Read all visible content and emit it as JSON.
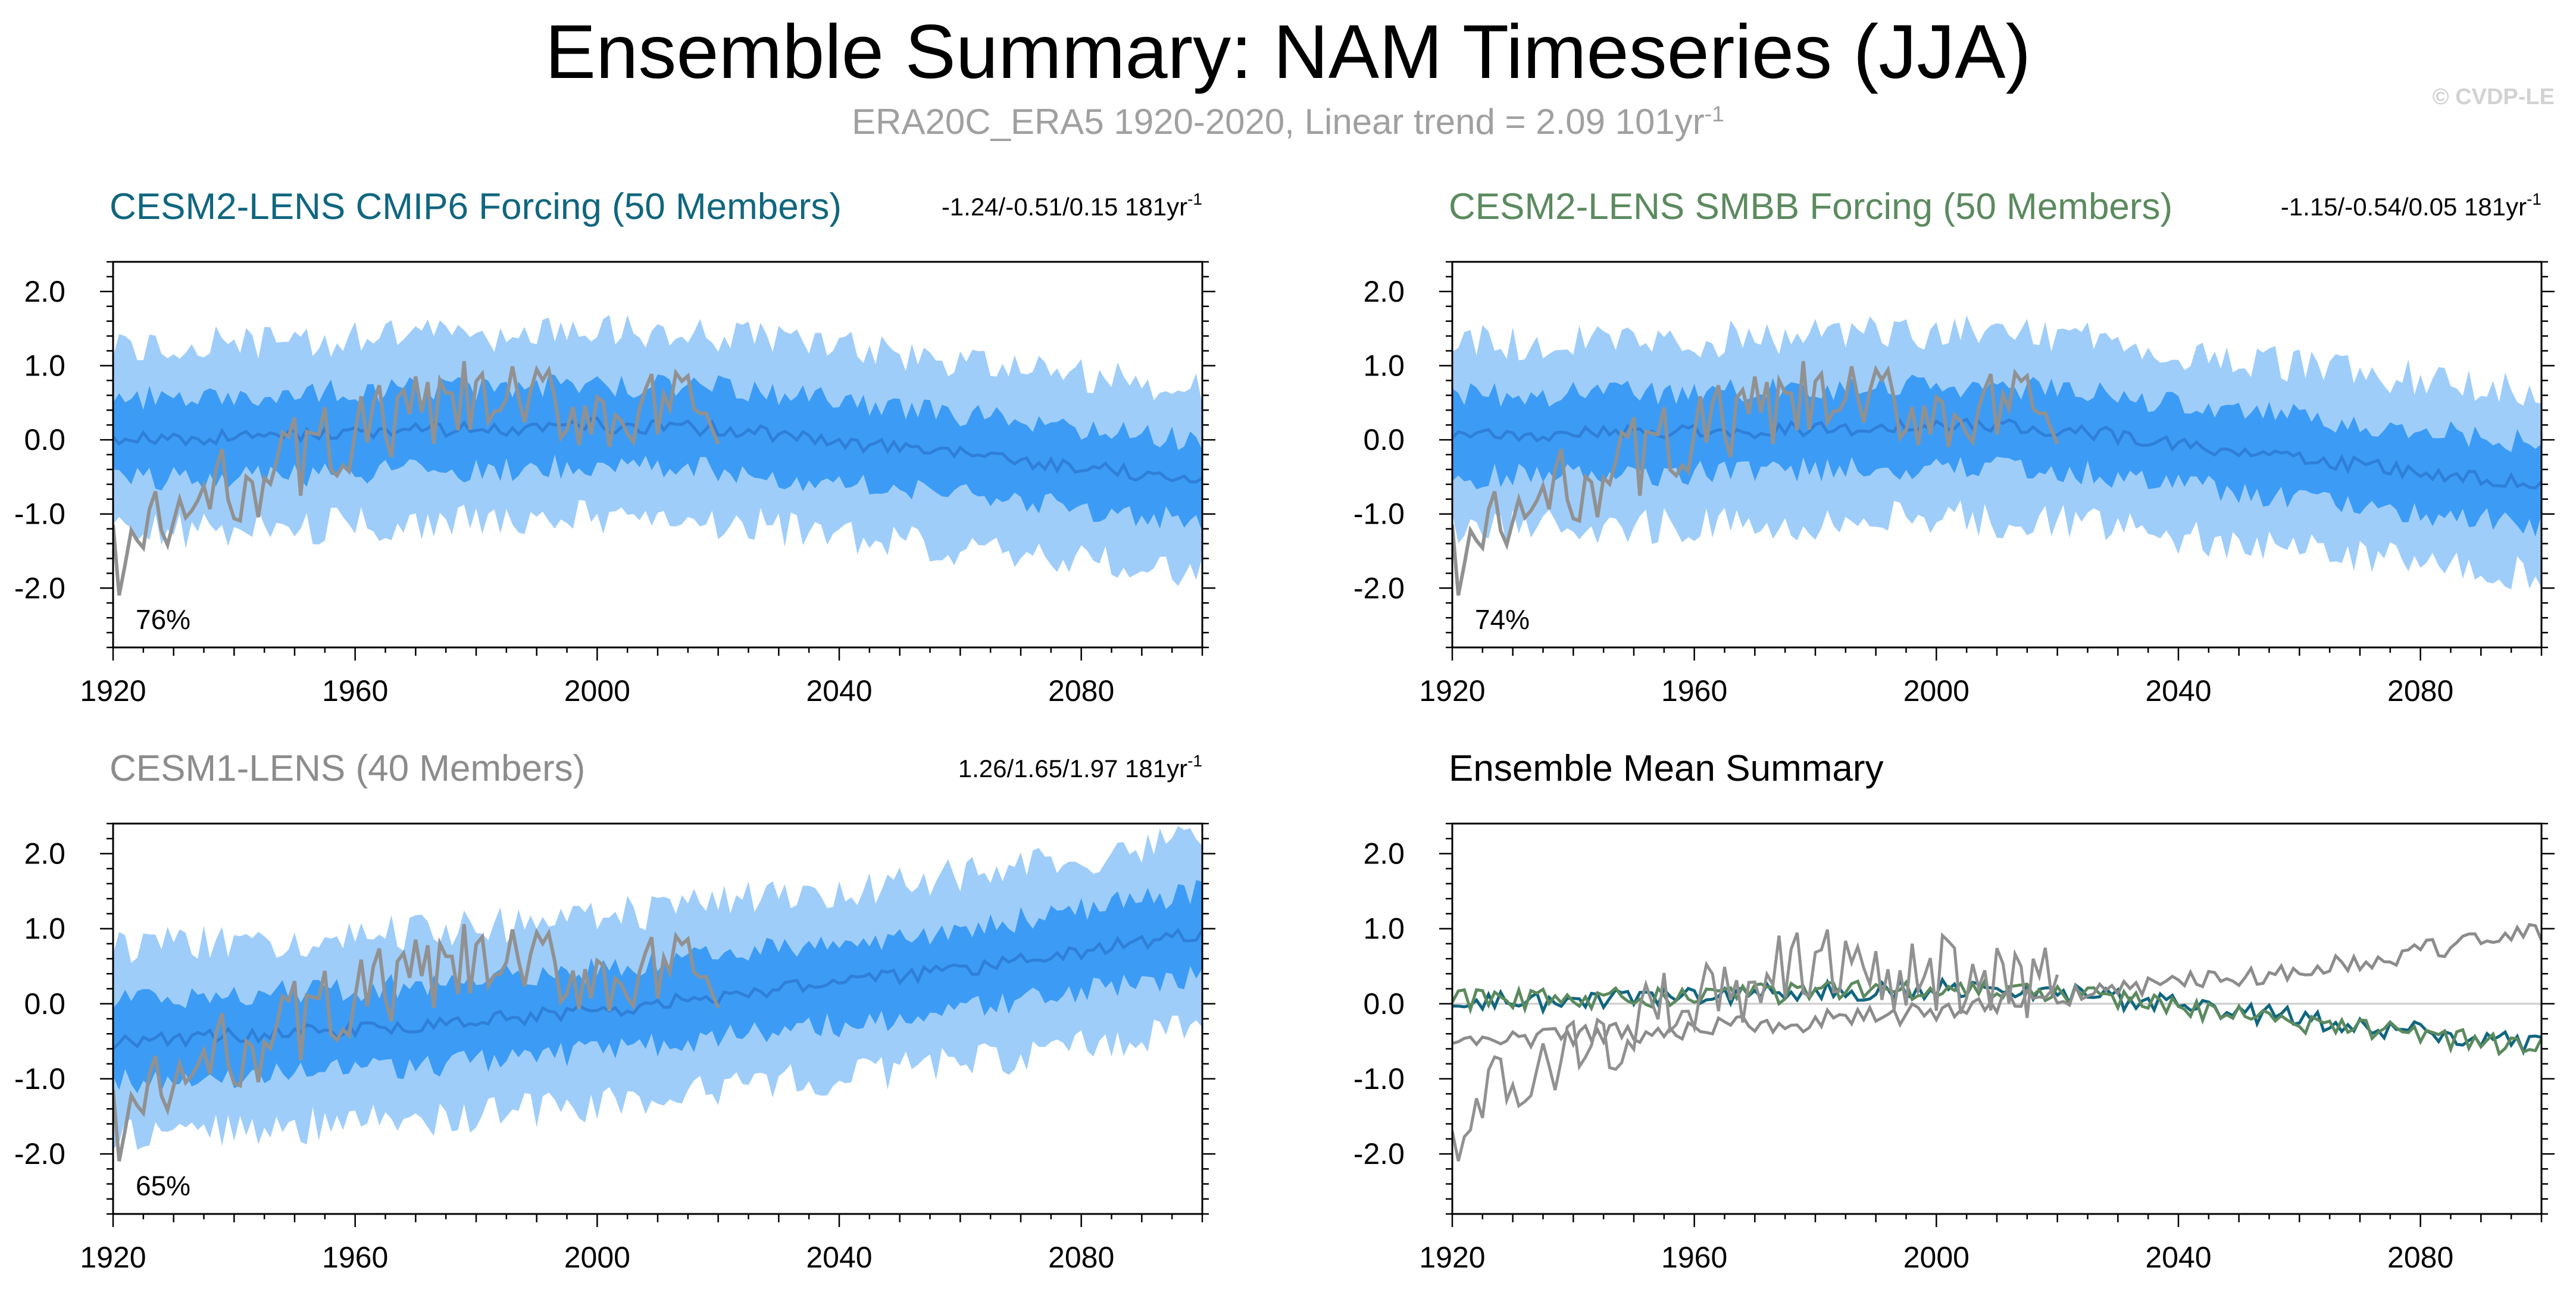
{
  "figure": {
    "title": "Ensemble Summary: NAM Timeseries (JJA)",
    "subtitle": "ERA20C_ERA5 1920-2020, Linear trend = 2.09 101yr",
    "subtitle_sup": "-1",
    "watermark": "© CVDP-LE"
  },
  "colors": {
    "outer_band": "#9fcdfa",
    "inner_band": "#3c9cf5",
    "ens_mean": "#2f7fd8",
    "observations": "#919191",
    "cmip6_title": "#10667f",
    "smbb_title": "#5b8a5e",
    "cesm1_title": "#8c8c8c",
    "axis": "#000000",
    "zero_line": "#cccccc"
  },
  "chart_data": [
    {
      "type": "area",
      "title": "CESM2-LENS CMIP6 Forcing (50 Members)",
      "title_color": "cmip6_title",
      "trend_stats": "-1.24/-0.51/0.15 181yr",
      "trend_sup": "-1",
      "percent_label": "76%",
      "x_range": [
        1920,
        2100
      ],
      "ylim": [
        -2.8,
        2.4
      ],
      "x_ticks": [
        1920,
        1960,
        2000,
        2040,
        2080
      ],
      "y_ticks": [
        -2.0,
        -1.0,
        0.0,
        1.0,
        2.0
      ],
      "y_tick_labels": [
        "-2.0",
        "-1.0",
        "0.0",
        "1.0",
        "2.0"
      ],
      "series": [
        {
          "name": "",
          "role": "ens_mean_trend",
          "x": [
            1920,
            1960,
            2000,
            2020,
            2060,
            2100
          ],
          "y": [
            0.0,
            0.1,
            0.2,
            0.15,
            -0.2,
            -0.55
          ]
        },
        {
          "name": "",
          "role": "observations",
          "x": [
            1920,
            1940,
            1960,
            1980,
            2000,
            2020
          ],
          "y": [
            -1.6,
            -0.6,
            0.1,
            0.5,
            0.4,
            0.3
          ]
        }
      ]
    },
    {
      "type": "area",
      "title": "CESM2-LENS SMBB Forcing (50 Members)",
      "title_color": "smbb_title",
      "trend_stats": "-1.15/-0.54/0.05 181yr",
      "trend_sup": "-1",
      "percent_label": "74%",
      "x_range": [
        1920,
        2100
      ],
      "ylim": [
        -2.8,
        2.4
      ],
      "x_ticks": [
        1920,
        1960,
        2000,
        2040,
        2080
      ],
      "y_ticks": [
        -2.0,
        -1.0,
        0.0,
        1.0,
        2.0
      ],
      "y_tick_labels": [
        "-2.0",
        "-1.0",
        "0.0",
        "1.0",
        "2.0"
      ],
      "series": [
        {
          "name": "",
          "role": "ens_mean_trend",
          "x": [
            1920,
            1960,
            2000,
            2020,
            2060,
            2100
          ],
          "y": [
            0.05,
            0.1,
            0.2,
            0.15,
            -0.25,
            -0.6
          ]
        },
        {
          "name": "",
          "role": "observations",
          "x": [
            1920,
            1940,
            1960,
            1980,
            2000,
            2020
          ],
          "y": [
            -1.6,
            -0.6,
            0.1,
            0.5,
            0.4,
            0.3
          ]
        }
      ]
    },
    {
      "type": "area",
      "title": "CESM1-LENS (40 Members)",
      "title_color": "cesm1_title",
      "trend_stats": "1.26/1.65/1.97 181yr",
      "trend_sup": "-1",
      "percent_label": "65%",
      "x_range": [
        1920,
        2100
      ],
      "ylim": [
        -2.8,
        2.4
      ],
      "x_ticks": [
        1920,
        1960,
        2000,
        2040,
        2080
      ],
      "y_ticks": [
        -2.0,
        -1.0,
        0.0,
        1.0,
        2.0
      ],
      "y_tick_labels": [
        "-2.0",
        "-1.0",
        "0.0",
        "1.0",
        "2.0"
      ],
      "series": [
        {
          "name": "",
          "role": "ens_mean_trend",
          "x": [
            1920,
            1960,
            2000,
            2020,
            2060,
            2100
          ],
          "y": [
            -0.5,
            -0.35,
            -0.1,
            0.1,
            0.45,
            0.95
          ]
        },
        {
          "name": "",
          "role": "observations",
          "x": [
            1920,
            1940,
            1960,
            1980,
            2000,
            2020
          ],
          "y": [
            -1.6,
            -0.6,
            0.1,
            0.5,
            0.4,
            0.3
          ]
        }
      ]
    },
    {
      "type": "line",
      "title": "Ensemble Mean Summary",
      "title_color": "axis",
      "trend_stats": "",
      "trend_sup": "",
      "percent_label": "",
      "x_range": [
        1920,
        2100
      ],
      "ylim": [
        -2.8,
        2.4
      ],
      "x_ticks": [
        1920,
        1960,
        2000,
        2040,
        2080
      ],
      "y_ticks": [
        -2.0,
        -1.0,
        0.0,
        1.0,
        2.0
      ],
      "y_tick_labels": [
        "-2.0",
        "-1.0",
        "0.0",
        "1.0",
        "2.0"
      ],
      "series": [
        {
          "name": "",
          "role": "cmip6_mean",
          "x": [
            1920,
            1960,
            2000,
            2020,
            2060,
            2100
          ],
          "y": [
            0.0,
            0.1,
            0.2,
            0.15,
            -0.2,
            -0.55
          ]
        },
        {
          "name": "",
          "role": "smbb_mean",
          "x": [
            1920,
            1960,
            2000,
            2020,
            2060,
            2100
          ],
          "y": [
            0.05,
            0.1,
            0.2,
            0.15,
            -0.25,
            -0.6
          ]
        },
        {
          "name": "",
          "role": "cesm1_mean",
          "x": [
            1920,
            1960,
            2000,
            2020,
            2060,
            2100
          ],
          "y": [
            -0.5,
            -0.35,
            -0.1,
            0.1,
            0.45,
            0.95
          ]
        },
        {
          "name": "",
          "role": "observations",
          "x": [
            1920,
            1940,
            1960,
            1980,
            2000,
            2020
          ],
          "y": [
            -1.6,
            -0.6,
            0.1,
            0.5,
            0.4,
            0.3
          ]
        }
      ]
    }
  ]
}
